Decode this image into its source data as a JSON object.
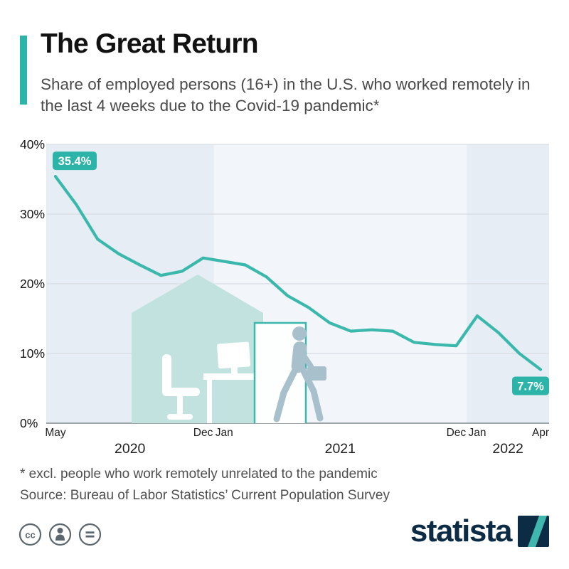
{
  "colors": {
    "accent": "#2cb4a8",
    "line": "#3ab8ac",
    "badge": "#2cb4a8",
    "band_shaded": "#e7edf4",
    "band_base": "#f2f6fa",
    "grid": "#d8dde3",
    "zero_line": "#8f989f",
    "brand_navy": "#0c2b45",
    "illustration_teal": "#c2e2df",
    "illustration_figure": "#a8c0cb"
  },
  "header": {
    "title": "The Great Return",
    "subtitle": "Share of employed persons (16+) in the U.S. who worked remotely in the last 4 weeks due to the Covid-19 pandemic*"
  },
  "chart_data": {
    "type": "line",
    "title": "The Great Return",
    "x": [
      "May 2020",
      "Jun 2020",
      "Jul 2020",
      "Aug 2020",
      "Sep 2020",
      "Oct 2020",
      "Nov 2020",
      "Dec 2020",
      "Jan 2021",
      "Feb 2021",
      "Mar 2021",
      "Apr 2021",
      "May 2021",
      "Jun 2021",
      "Jul 2021",
      "Aug 2021",
      "Sep 2021",
      "Oct 2021",
      "Nov 2021",
      "Dec 2021",
      "Jan 2022",
      "Feb 2022",
      "Mar 2022",
      "Apr 2022"
    ],
    "values": [
      35.4,
      31.3,
      26.4,
      24.3,
      22.7,
      21.2,
      21.8,
      23.7,
      23.2,
      22.7,
      21.0,
      18.3,
      16.6,
      14.4,
      13.2,
      13.4,
      13.2,
      11.6,
      11.3,
      11.1,
      15.4,
      13.0,
      10.0,
      7.7
    ],
    "ylim": [
      0,
      40
    ],
    "yticks": [
      0,
      10,
      20,
      30,
      40
    ],
    "ytick_labels": [
      "0%",
      "10%",
      "20%",
      "30%",
      "40%"
    ],
    "month_labels": [
      {
        "text": "May",
        "index": 0
      },
      {
        "text": "Dec",
        "index": 7
      },
      {
        "text": "Jan",
        "index": 8
      },
      {
        "text": "Dec",
        "index": 19
      },
      {
        "text": "Jan",
        "index": 20
      },
      {
        "text": "Apr",
        "index": 23
      }
    ],
    "year_bands": [
      {
        "label": "2020",
        "start": 0,
        "end": 7.5,
        "shaded": true
      },
      {
        "label": "2021",
        "start": 7.5,
        "end": 19.5,
        "shaded": false
      },
      {
        "label": "2022",
        "start": 19.5,
        "end": 23,
        "shaded": true
      }
    ],
    "annotations": [
      {
        "index": 0,
        "text": "35.4%",
        "position": "above"
      },
      {
        "index": 23,
        "text": "7.7%",
        "position": "below"
      }
    ],
    "grid": true,
    "legend": false,
    "xlabel": "",
    "ylabel": ""
  },
  "footnote": "* excl. people who work remotely unrelated to the pandemic",
  "source": "Source: Bureau of Labor Statistics’ Current Population Survey",
  "footer": {
    "brand": "statista",
    "license_icons": [
      {
        "name": "cc-icon",
        "glyph": "cc"
      },
      {
        "name": "attribution-icon",
        "glyph": "person"
      },
      {
        "name": "nd-icon",
        "glyph": "="
      }
    ]
  }
}
